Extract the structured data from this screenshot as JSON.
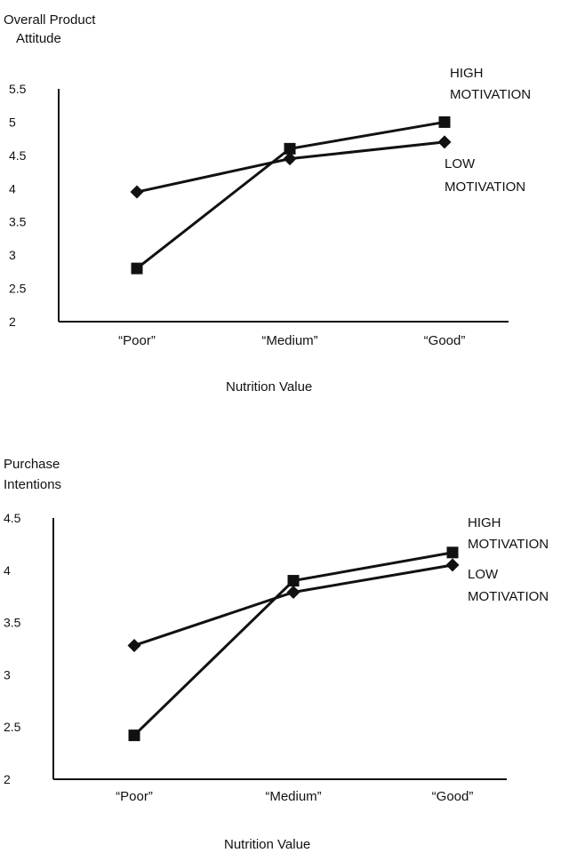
{
  "chart_data": [
    {
      "type": "line",
      "ylabel_lines": [
        "Overall Product",
        "Attitude"
      ],
      "xlabel": "Nutrition Value",
      "categories": [
        "“Poor”",
        "“Medium”",
        "“Good”"
      ],
      "yticks": [
        "5.5",
        "5",
        "4.5",
        "4",
        "3.5",
        "3",
        "2.5",
        "2"
      ],
      "ylim": [
        2,
        5.5
      ],
      "grid": false,
      "series": [
        {
          "name_lines": [
            "HIGH",
            "MOTIVATION"
          ],
          "marker": "square",
          "values": [
            2.8,
            4.6,
            5.0
          ]
        },
        {
          "name_lines": [
            "LOW",
            "MOTIVATION"
          ],
          "marker": "diamond",
          "values": [
            3.95,
            4.45,
            4.7
          ]
        }
      ]
    },
    {
      "type": "line",
      "ylabel_lines": [
        "Purchase",
        "Intentions"
      ],
      "xlabel": "Nutrition Value",
      "categories": [
        "“Poor”",
        "“Medium”",
        "“Good”"
      ],
      "yticks": [
        "4.5",
        "4",
        "3.5",
        "3",
        "2.5",
        "2"
      ],
      "ylim": [
        2,
        4.5
      ],
      "grid": false,
      "series": [
        {
          "name_lines": [
            "HIGH",
            "MOTIVATION"
          ],
          "marker": "square",
          "values": [
            2.42,
            3.9,
            4.17
          ]
        },
        {
          "name_lines": [
            "LOW",
            "MOTIVATION"
          ],
          "marker": "diamond",
          "values": [
            3.28,
            3.79,
            4.05
          ]
        }
      ]
    }
  ]
}
